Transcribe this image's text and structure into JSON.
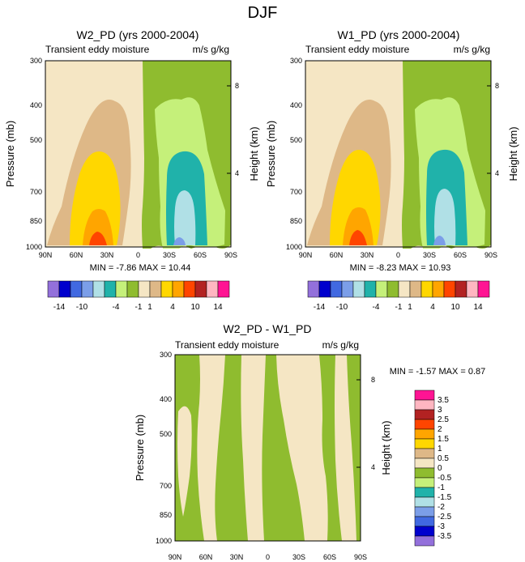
{
  "figure_title": "DJF",
  "colors": {
    "c_m14": "#9370db",
    "c_m12": "#0000cd",
    "c_m10": "#4169e1",
    "c_m8": "#7b9ee8",
    "c_m6": "#b0e0e6",
    "c_m4": "#20b2aa",
    "c_m2": "#c5f07a",
    "c_m1": "#8fbc2f",
    "c_p1": "#f5e6c4",
    "c_p2": "#deb887",
    "c_p4": "#ffd700",
    "c_p6": "#ffa500",
    "c_p8": "#ff4500",
    "c_p10": "#b22222",
    "c_p12": "#ffb6c1",
    "c_p14": "#ff1493"
  },
  "chart_data": [
    {
      "type": "contour",
      "title": "W2_PD (yrs 2000-2004)",
      "left_string": "Transient eddy moisture",
      "right_string": "m/s g/kg",
      "ylabel": "Pressure (mb)",
      "y2label": "Height (km)",
      "yticks": [
        "300",
        "400",
        "500",
        "700",
        "850",
        "1000"
      ],
      "y2ticks": [
        "8",
        "4"
      ],
      "xticks": [
        "90N",
        "60N",
        "30N",
        "0",
        "30S",
        "60S",
        "90S"
      ],
      "min_value": -7.86,
      "max_value": 10.44,
      "stats_text": "MIN = -7.86 MAX = 10.44",
      "colorbar_labels": [
        "-14",
        "-10",
        "-4",
        "-1",
        "1",
        "4",
        "10",
        "14"
      ]
    },
    {
      "type": "contour",
      "title": "W1_PD (yrs 2000-2004)",
      "left_string": "Transient eddy moisture",
      "right_string": "m/s g/kg",
      "ylabel": "Pressure (mb)",
      "y2label": "Height (km)",
      "yticks": [
        "300",
        "400",
        "500",
        "700",
        "850",
        "1000"
      ],
      "y2ticks": [
        "8",
        "4"
      ],
      "xticks": [
        "90N",
        "60N",
        "30N",
        "0",
        "30S",
        "60S",
        "90S"
      ],
      "min_value": -8.23,
      "max_value": 10.93,
      "stats_text": "MIN = -8.23 MAX = 10.93",
      "colorbar_labels": [
        "-14",
        "-10",
        "-4",
        "-1",
        "1",
        "4",
        "10",
        "14"
      ]
    },
    {
      "type": "contour",
      "title": "W2_PD - W1_PD",
      "left_string": "Transient eddy moisture",
      "right_string": "m/s g/kg",
      "ylabel": "Pressure (mb)",
      "y2label": "Height (km)",
      "yticks": [
        "300",
        "400",
        "500",
        "700",
        "850",
        "1000"
      ],
      "y2ticks": [
        "8",
        "4"
      ],
      "xticks": [
        "90N",
        "60N",
        "30N",
        "0",
        "30S",
        "60S",
        "90S"
      ],
      "min_value": -1.57,
      "max_value": 0.87,
      "stats_text": "MIN = -1.57 MAX = 0.87",
      "colorbar_labels": [
        "3.5",
        "3",
        "2.5",
        "2",
        "1.5",
        "1",
        "0.5",
        "0",
        "-0.5",
        "-1",
        "-1.5",
        "-2",
        "-2.5",
        "-3",
        "-3.5"
      ]
    }
  ]
}
